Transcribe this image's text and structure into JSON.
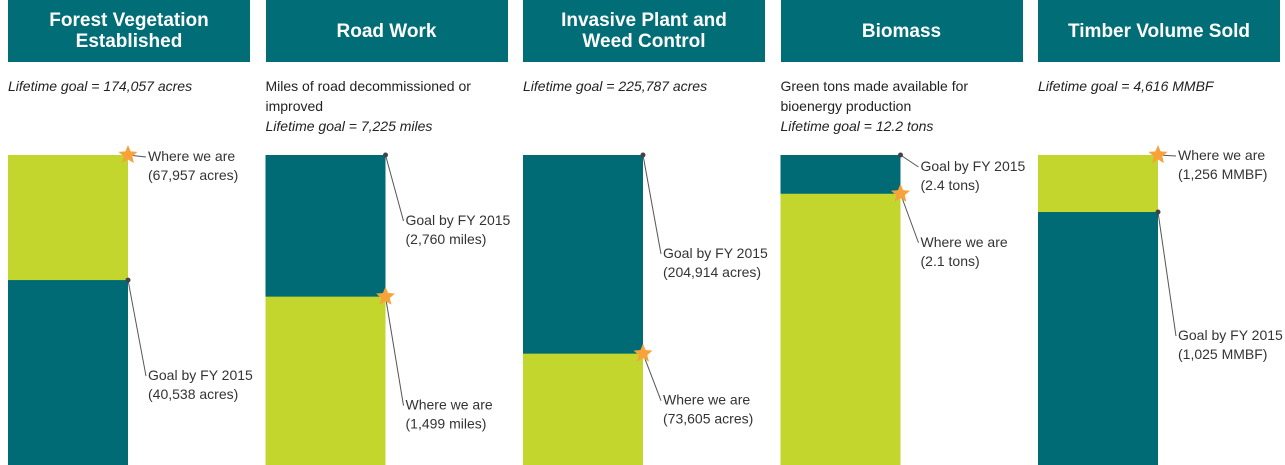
{
  "chart_data": [
    {
      "type": "bar",
      "title": "Forest Vegetation Established",
      "annotation": "Lifetime goal = 174,057 acres",
      "series": [
        {
          "name": "Where we are",
          "color": "#c3d62d",
          "values": [
            67957
          ],
          "value_labels": [
            "(67,957 acres)"
          ]
        },
        {
          "name": "Goal by FY 2015",
          "color": "#006b75",
          "values": [
            40538
          ],
          "value_labels": [
            "(40,538 acres)"
          ]
        }
      ]
    },
    {
      "type": "bar",
      "title": "Road Work",
      "subtitle": "Miles of road decommissioned or improved",
      "annotation": "Lifetime goal = 7,225 miles",
      "series": [
        {
          "name": "Goal by FY 2015",
          "color": "#006b75",
          "values": [
            2760
          ],
          "value_labels": [
            "(2,760 miles)"
          ]
        },
        {
          "name": "Where we are",
          "color": "#c3d62d",
          "values": [
            1499
          ],
          "value_labels": [
            "(1,499 miles)"
          ]
        }
      ]
    },
    {
      "type": "bar",
      "title": "Invasive Plant and Weed Control",
      "annotation": "Lifetime goal = 225,787 acres",
      "series": [
        {
          "name": "Goal by FY 2015",
          "color": "#006b75",
          "values": [
            204914
          ],
          "value_labels": [
            "(204,914 acres)"
          ]
        },
        {
          "name": "Where we are",
          "color": "#c3d62d",
          "values": [
            73605
          ],
          "value_labels": [
            "(73,605 acres)"
          ]
        }
      ]
    },
    {
      "type": "bar",
      "title": "Biomass",
      "subtitle": "Green tons made available for bioenergy production",
      "annotation": "Lifetime goal = 12.2 tons",
      "series": [
        {
          "name": "Goal by FY 2015",
          "color": "#006b75",
          "values": [
            2.4
          ],
          "value_labels": [
            "(2.4 tons)"
          ]
        },
        {
          "name": "Where we are",
          "color": "#c3d62d",
          "values": [
            2.1
          ],
          "value_labels": [
            "(2.1 tons)"
          ]
        }
      ]
    },
    {
      "type": "bar",
      "title": "Timber Volume Sold",
      "annotation": "Lifetime goal = 4,616 MMBF",
      "series": [
        {
          "name": "Where we are",
          "color": "#c3d62d",
          "values": [
            1256
          ],
          "value_labels": [
            "(1,256 MMBF)"
          ]
        },
        {
          "name": "Goal by FY 2015",
          "color": "#006b75",
          "values": [
            1025
          ],
          "value_labels": [
            "(1,025 MMBF)"
          ]
        }
      ]
    }
  ]
}
